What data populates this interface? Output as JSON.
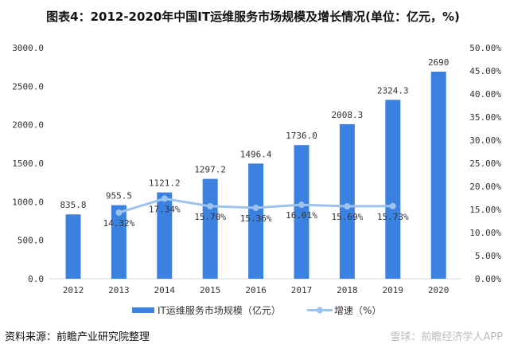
{
  "chart_data": {
    "type": "bar+line",
    "title": "图表4：2012-2020年中国IT运维服务市场规模及增长情况(单位：亿元，%)",
    "categories": [
      "2012",
      "2013",
      "2014",
      "2015",
      "2016",
      "2017",
      "2018",
      "2019",
      "2020"
    ],
    "series": [
      {
        "name": "IT运维服务市场规模（亿元）",
        "type": "bar",
        "axis": "left",
        "color": "#3b82e0",
        "values": [
          835.8,
          955.5,
          1121.2,
          1297.2,
          1496.4,
          1736.0,
          2008.3,
          2324.3,
          2690
        ],
        "labels": [
          "835.8",
          "955.5",
          "1121.2",
          "1297.2",
          "1496.4",
          "1736.0",
          "2008.3",
          "2324.3",
          "2690"
        ]
      },
      {
        "name": "增速（%）",
        "type": "line",
        "axis": "right",
        "color": "#9cc3ee",
        "values": [
          null,
          14.32,
          17.34,
          15.7,
          15.36,
          16.01,
          15.69,
          15.73,
          null
        ],
        "labels": [
          null,
          "14.32%",
          "17.34%",
          "15.70%",
          "15.36%",
          "16.01%",
          "15.69%",
          "15.73%",
          null
        ]
      }
    ],
    "y_left": {
      "range": [
        0,
        3000
      ],
      "ticks": [
        "0.0",
        "500.0",
        "1000.0",
        "1500.0",
        "2000.0",
        "2500.0",
        "3000.0"
      ]
    },
    "y_right": {
      "range": [
        0,
        50
      ],
      "ticks": [
        "0.00%",
        "5.00%",
        "10.00%",
        "15.00%",
        "20.00%",
        "25.00%",
        "30.00%",
        "35.00%",
        "40.00%",
        "45.00%",
        "50.00%"
      ]
    },
    "grid": false,
    "legend": "bottom"
  },
  "source": "资料来源：前瞻产业研究院整理",
  "watermark": "雪球：前瞻经济学人APP"
}
